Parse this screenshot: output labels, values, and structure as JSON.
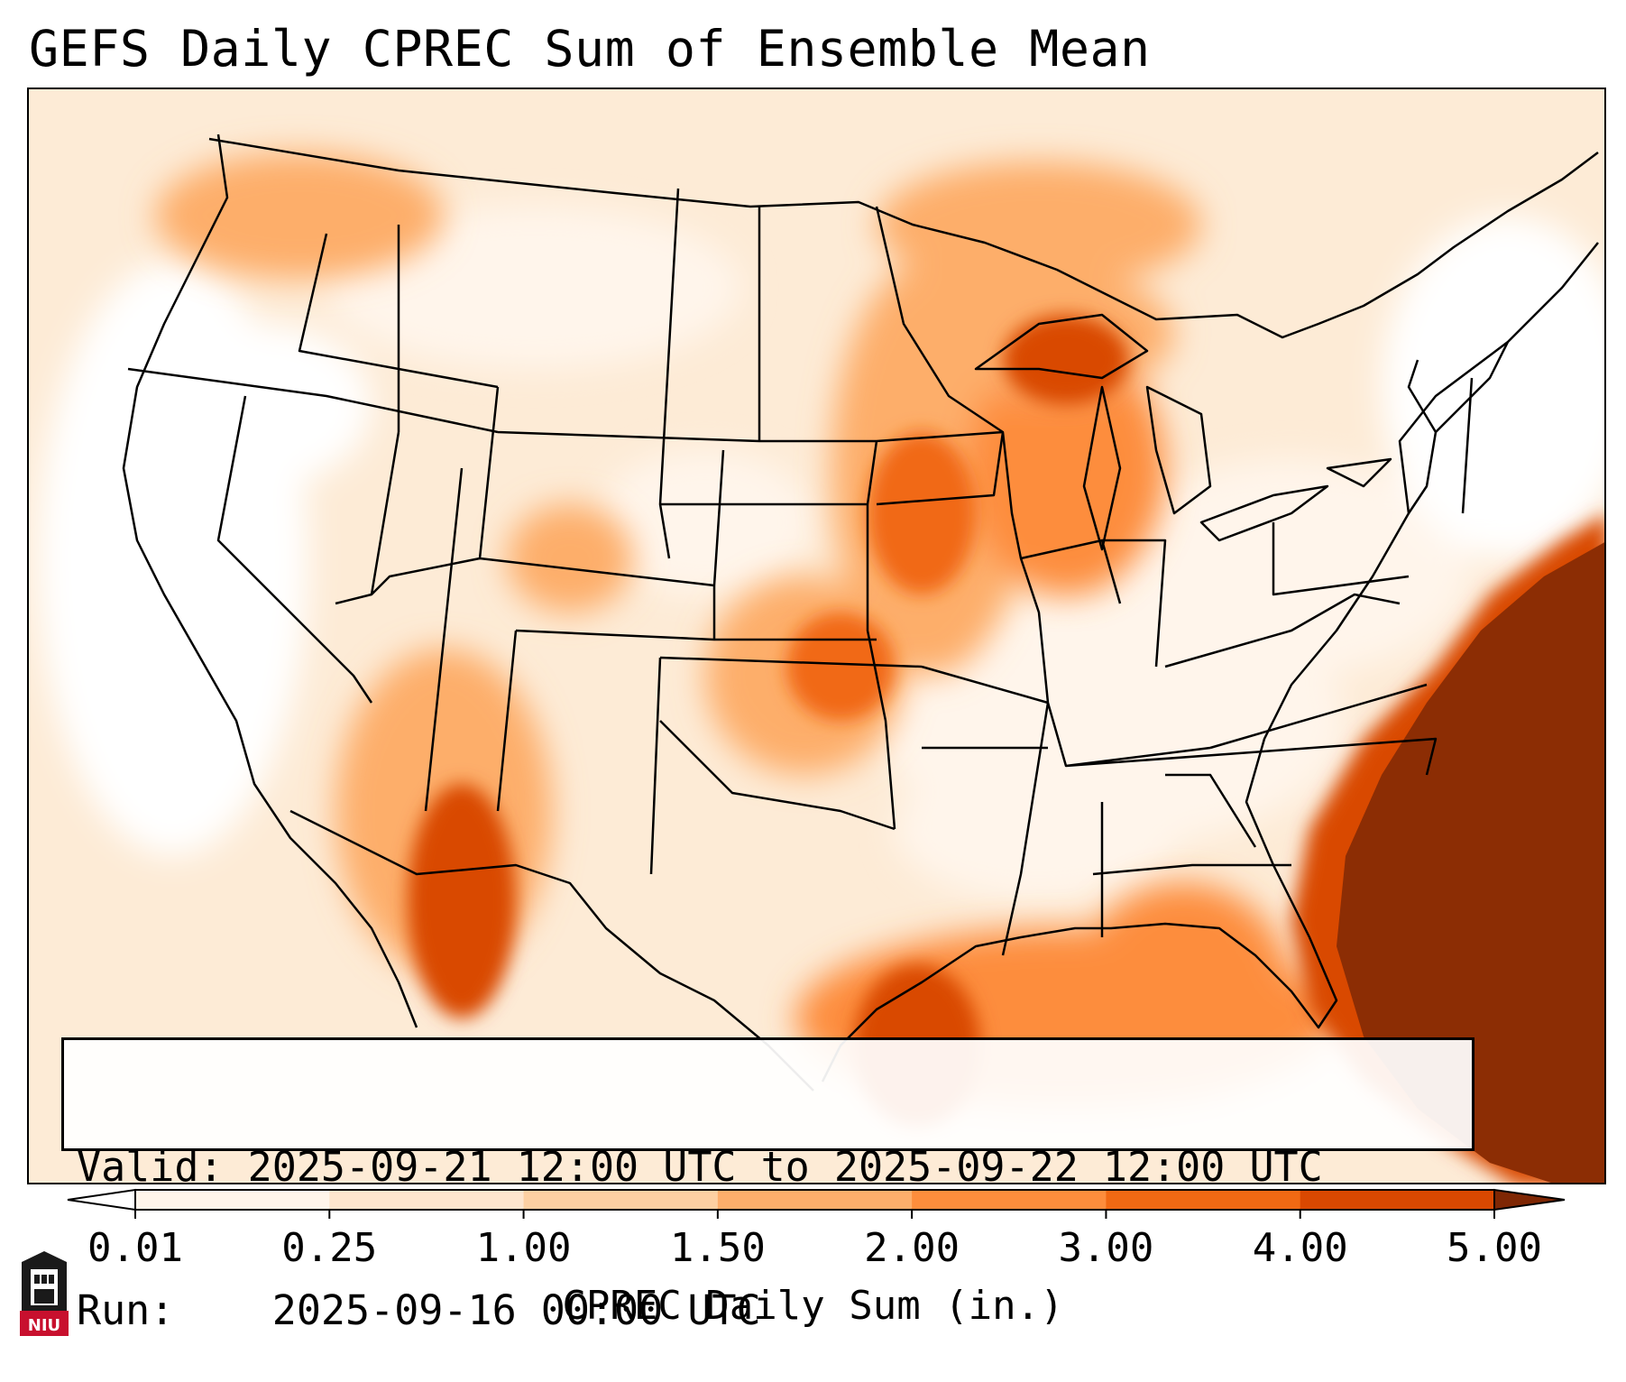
{
  "title": "GEFS Daily CPREC Sum of Ensemble Mean",
  "info": {
    "valid_label": "Valid:",
    "valid_value": "2025-09-21 12:00 UTC to 2025-09-22 12:00 UTC",
    "run_label": "Run:",
    "run_value": "2025-09-16 00:00 UTC"
  },
  "colorbar": {
    "label": "CPREC Daily Sum (in.)",
    "ticks": [
      "0.01",
      "0.25",
      "1.00",
      "1.50",
      "2.00",
      "3.00",
      "4.00",
      "5.00"
    ],
    "colors": [
      "#fff5eb",
      "#fee6ce",
      "#fdd0a2",
      "#fdae6b",
      "#fd8d3c",
      "#f16913",
      "#d94801",
      "#8c2d04"
    ],
    "under_color": "#ffffff",
    "over_color": "#7f2704"
  },
  "map": {
    "region": "Continental United States",
    "projection": "Lambert Conformal"
  },
  "logo": {
    "text": "NIU"
  }
}
